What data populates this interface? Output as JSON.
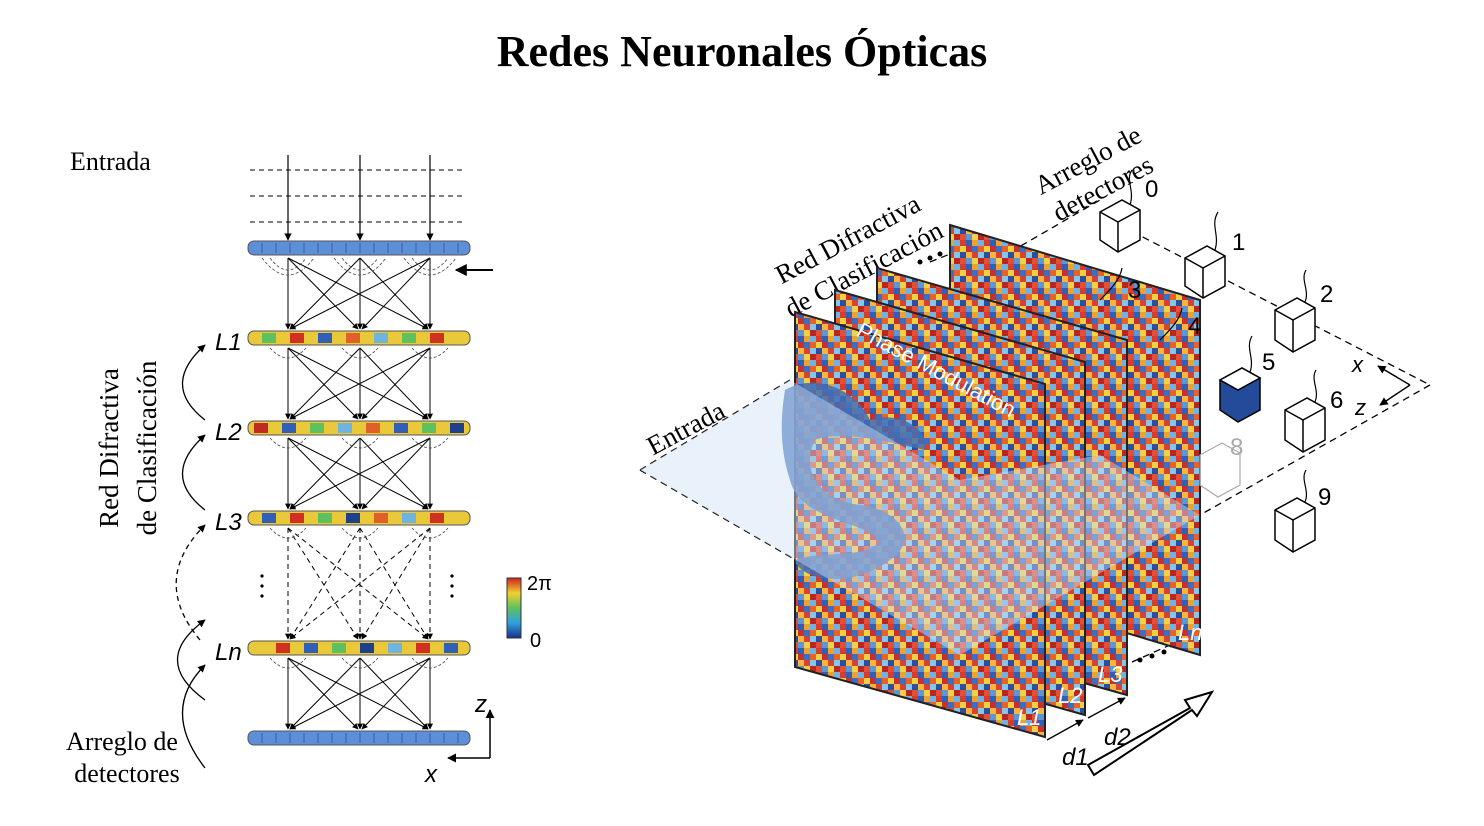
{
  "title": "Redes Neuronales Ópticas",
  "left_panel": {
    "input_label": "Entrada",
    "network_label_line1": "Red Difractiva",
    "network_label_line2": "de Clasificación",
    "layer_labels": [
      "L1",
      "L2",
      "L3",
      "Ln"
    ],
    "detector_label_line1": "Arreglo de",
    "detector_label_line2": "detectores",
    "colorbar_max": "2π",
    "colorbar_min": "0",
    "axis_z": "z",
    "axis_x": "x"
  },
  "right_panel": {
    "network_label_line1": "Red Difractiva",
    "network_label_line2": "de Clasificación",
    "detector_label_line1": "Arreglo de",
    "detector_label_line2": "detectores",
    "input_label": "Entrada",
    "plate_text": "Phase Modulation",
    "layer_labels": [
      "L1",
      "L2",
      "L3",
      "Ln"
    ],
    "distance_labels": [
      "d1",
      "d2"
    ],
    "detector_numbers": [
      "0",
      "1",
      "2",
      "3",
      "4",
      "5",
      "6",
      "8",
      "9"
    ],
    "axis_x": "x",
    "axis_z": "z"
  },
  "colors": {
    "dark_blue": "#1f3f8f",
    "light_blue": "#5b8fd8",
    "active_detector": "#244b9a"
  }
}
